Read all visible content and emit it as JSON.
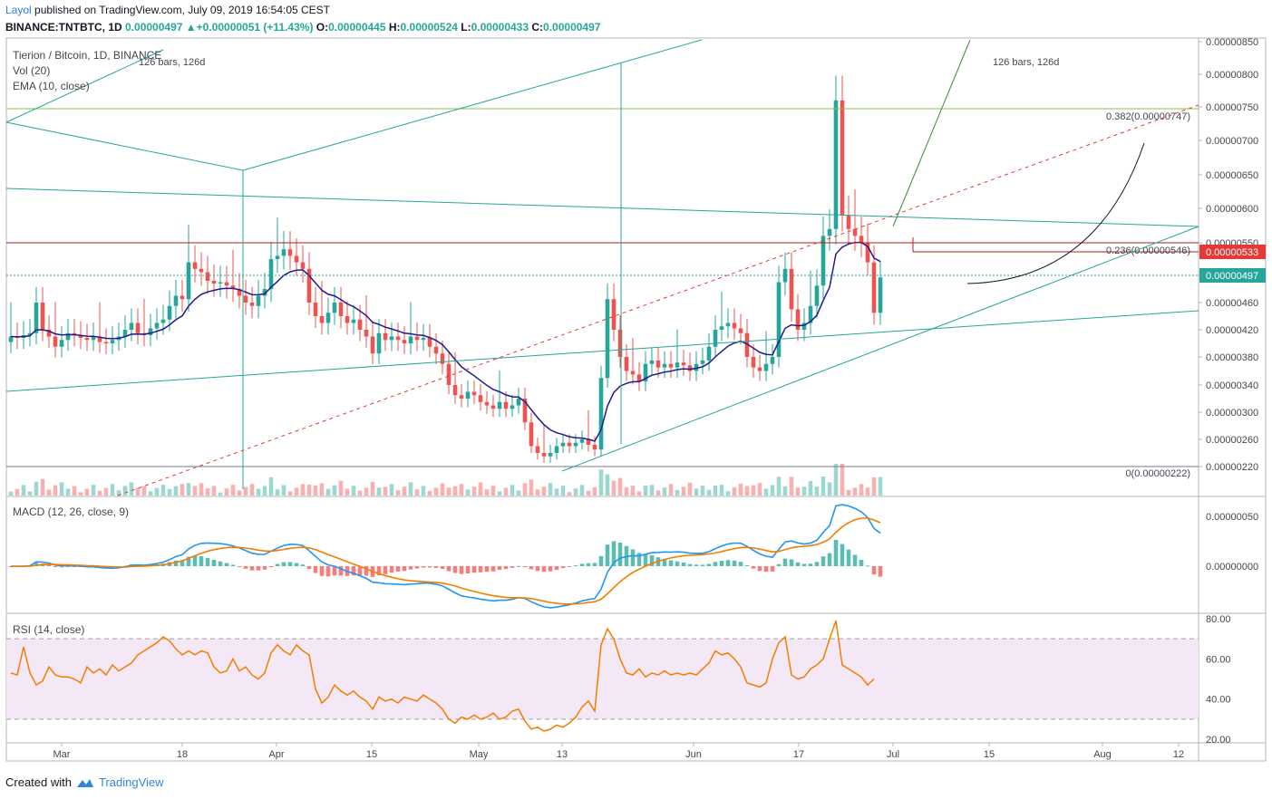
{
  "header": {
    "author": "Layol",
    "published": " published on TradingView.com, July 09, 2019 16:54:05 CEST",
    "symbol": "BINANCE:TNTBTC, 1D",
    "last": "0.00000497",
    "arrow": "▲",
    "change": "+0.00000051 (+11.43%)",
    "o_label": "O:",
    "o_value": "0.00000445",
    "h_label": "H:",
    "h_value": "0.00000524",
    "l_label": "L:",
    "l_value": "0.00000433",
    "c_label": "C:",
    "c_value": "0.00000497"
  },
  "main_legend": {
    "title": "Tierion / Bitcoin, 1D, BINANCE",
    "vol": "Vol (20)",
    "ema": "EMA (10, close)"
  },
  "annotations": {
    "bars_left": "126 bars, 126d",
    "bars_right": "126 bars, 126d",
    "fib_382": "0.382(0.00000747)",
    "fib_236": "0.236(0.00000546)",
    "fib_0": "0(0.00000222)",
    "current_tag": "0.00000497",
    "red_tag": "0.00000533"
  },
  "macd_legend": "MACD (12, 26, close, 9)",
  "rsi_legend": "RSI (14, close)",
  "footer": {
    "created": "Created with",
    "brand": "TradingView"
  },
  "colors": {
    "up": "#26a69a",
    "down": "#ef5350",
    "ema": "#1f1b8c",
    "macd": "#2196f3",
    "signal": "#f57c00",
    "rsi": "#f57c00",
    "trend": "#26a69a"
  },
  "chart_data": [
    {
      "type": "candlestick",
      "price_axis": [
        2.2e-06,
        2.6e-06,
        3e-06,
        3.4e-06,
        3.8e-06,
        4.2e-06,
        4.6e-06,
        5e-06,
        5.5e-06,
        6e-06,
        6.5e-06,
        7e-06,
        7.5e-06,
        8e-06,
        8.5e-06
      ],
      "price_axis_labels": [
        "0.00000220",
        "0.00000260",
        "0.00000300",
        "0.00000340",
        "0.00000380",
        "0.00000420",
        "0.00000460",
        "0.00000500",
        "0.00000550",
        "0.00000600",
        "0.00000650",
        "0.00000700",
        "0.00000750",
        "0.00000800",
        "0.00000850"
      ],
      "time_axis_labels": [
        "Mar",
        "18",
        "Apr",
        "15",
        "May",
        "13",
        "Jun",
        "17",
        "Jul",
        "15",
        "Aug",
        "12"
      ],
      "close": [
        4.1e-06,
        4.08e-06,
        4.12e-06,
        4.15e-06,
        4.6e-06,
        4.2e-06,
        4.1e-06,
        3.95e-06,
        4.05e-06,
        4.15e-06,
        4.12e-06,
        4.08e-06,
        4.05e-06,
        4.1e-06,
        4.02e-06,
        4e-06,
        4.05e-06,
        4.1e-06,
        4.2e-06,
        4.3e-06,
        4.15e-06,
        4.12e-06,
        4.22e-06,
        4.3e-06,
        4.35e-06,
        4.55e-06,
        4.7e-06,
        4.65e-06,
        5.2e-06,
        5.1e-06,
        5.05e-06,
        4.92e-06,
        4.88e-06,
        4.9e-06,
        4.85e-06,
        4.8e-06,
        4.7e-06,
        4.6e-06,
        4.55e-06,
        4.7e-06,
        4.8e-06,
        5.25e-06,
        5.3e-06,
        5.4e-06,
        5.3e-06,
        5.2e-06,
        5.1e-06,
        4.6e-06,
        4.4e-06,
        4.3e-06,
        4.45e-06,
        4.6e-06,
        4.4e-06,
        4.3e-06,
        4.35e-06,
        4.2e-06,
        4.1e-06,
        3.85e-06,
        4.15e-06,
        4.05e-06,
        4.1e-06,
        4.05e-06,
        4e-06,
        4.1e-06,
        4.05e-06,
        4.08e-06,
        3.95e-06,
        3.85e-06,
        3.7e-06,
        3.4e-06,
        3.25e-06,
        3.2e-06,
        3.3e-06,
        3.25e-06,
        3.15e-06,
        3.1e-06,
        3.05e-06,
        3.15e-06,
        3.05e-06,
        3.1e-06,
        3.2e-06,
        2.85e-06,
        2.5e-06,
        2.4e-06,
        2.35e-06,
        2.4e-06,
        2.5e-06,
        2.55e-06,
        2.5e-06,
        2.55e-06,
        2.6e-06,
        2.52e-06,
        2.45e-06,
        3.5e-06,
        4.65e-06,
        4.2e-06,
        3.8e-06,
        3.6e-06,
        3.55e-06,
        3.45e-06,
        3.7e-06,
        3.75e-06,
        3.65e-06,
        3.7e-06,
        3.65e-06,
        3.72e-06,
        3.68e-06,
        3.6e-06,
        3.7e-06,
        3.75e-06,
        3.95e-06,
        4.2e-06,
        4.25e-06,
        4.3e-06,
        4.22e-06,
        4.15e-06,
        3.8e-06,
        3.65e-06,
        3.6e-06,
        3.7e-06,
        3.8e-06,
        4.9e-06,
        5.1e-06,
        4.5e-06,
        4.2e-06,
        4.3e-06,
        4.55e-06,
        4.85e-06,
        5.6e-06,
        5.7e-06,
        7.6e-06,
        5.9e-06,
        5.7e-06,
        5.6e-06,
        5.5e-06,
        5.2e-06,
        4.45e-06,
        4.97e-06
      ],
      "ema10_color": "#1f1b8c"
    },
    {
      "type": "line",
      "name": "MACD (12, 26, close, 9)",
      "y_axis_labels": [
        "0.00000050",
        "0.00000000"
      ]
    },
    {
      "type": "line",
      "name": "RSI (14, close)",
      "y_axis_labels": [
        "80.00",
        "60.00",
        "40.00",
        "20.00"
      ],
      "band": [
        30,
        70
      ],
      "values": [
        53,
        52,
        66,
        53,
        47,
        49,
        56,
        52,
        51,
        51,
        50,
        48,
        56,
        53,
        55,
        52,
        57,
        54,
        56,
        58,
        62,
        64,
        66,
        68,
        71,
        69,
        65,
        62,
        64,
        62,
        64,
        63,
        56,
        53,
        54,
        60,
        54,
        56,
        52,
        50,
        53,
        63,
        67,
        64,
        62,
        67,
        64,
        62,
        45,
        38,
        41,
        47,
        44,
        42,
        44,
        41,
        39,
        35,
        41,
        39,
        40,
        38,
        41,
        40,
        39,
        42,
        40,
        38,
        35,
        30,
        28,
        31,
        30,
        32,
        30,
        31,
        33,
        30,
        31,
        34,
        35,
        29,
        25,
        26,
        24,
        25,
        27,
        26,
        28,
        31,
        36,
        39,
        34,
        67,
        75,
        70,
        60,
        53,
        52,
        55,
        51,
        53,
        52,
        54,
        52,
        53,
        52,
        53,
        52,
        55,
        58,
        64,
        62,
        63,
        60,
        56,
        48,
        47,
        46,
        48,
        60,
        68,
        71,
        52,
        50,
        51,
        55,
        57,
        60,
        70,
        79,
        57,
        55,
        53,
        51,
        47,
        50
      ]
    }
  ]
}
